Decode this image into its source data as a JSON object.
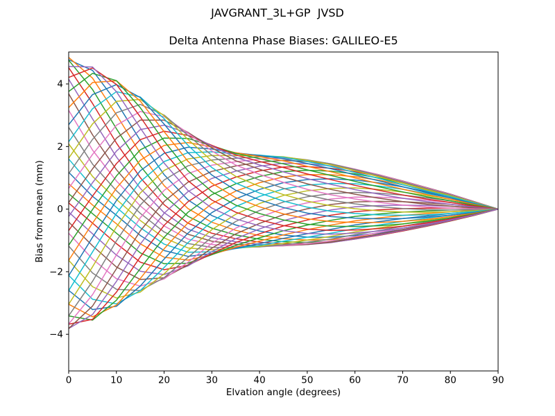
{
  "chart_data": {
    "type": "line",
    "title": "JAVGRANT_3L+GP  JVSD",
    "subtitle": "Delta Antenna Phase Biases: GALILEO-E5",
    "xlabel": "Elvation angle (degrees)",
    "ylabel": "Bias from mean (mm)",
    "xlim": [
      0,
      90
    ],
    "ylim": [
      -5.17,
      5.02
    ],
    "x_ticks": [
      0,
      10,
      20,
      30,
      40,
      50,
      60,
      70,
      80,
      90
    ],
    "y_ticks": [
      -4,
      -2,
      0,
      2,
      4
    ],
    "grid": false,
    "legend": false,
    "axis_color": "#000000",
    "background_color": "#ffffff",
    "line_width": 1.5,
    "series_count": 45,
    "series_note": "Family of ~45 unlabeled azimuth curves; all converge to 0 mm at 90 deg elevation. Values below are estimated from the plot.",
    "palette": [
      "#1f77b4",
      "#ff7f0e",
      "#2ca02c",
      "#d62728",
      "#9467bd",
      "#8c564b",
      "#e377c2",
      "#7f7f7f",
      "#bcbd22",
      "#17becf"
    ],
    "x_samples": [
      0,
      5,
      10,
      15,
      20,
      25,
      30,
      35,
      40,
      45,
      50,
      55,
      60,
      65,
      70,
      75,
      80,
      85,
      90
    ],
    "envelope_upper": [
      4.75,
      4.6,
      4.0,
      3.3,
      2.55,
      1.95,
      1.5,
      1.55,
      1.7,
      1.7,
      1.6,
      1.5,
      1.3,
      1.1,
      0.9,
      0.7,
      0.45,
      0.25,
      0.0
    ],
    "envelope_lower": [
      -3.85,
      -3.3,
      -2.8,
      -2.7,
      -2.5,
      -2.35,
      -2.2,
      -1.75,
      -1.4,
      -1.3,
      -1.2,
      -1.1,
      -1.0,
      -0.85,
      -0.7,
      -0.5,
      -0.35,
      -0.18,
      0.0
    ],
    "pinch_point": {
      "x": 27,
      "y": 0.3
    },
    "family_model": {
      "formula": "y(k,x) = A1(x)*cos(az+phi1(x)) + A2(x)*cos(2*az+phi2(x)) + A3(x)*cos(3*az+phi3(x)) + C(x), az = 2*pi*k/45, sampled at x_samples",
      "A1": [
        3.9,
        3.65,
        3.28,
        2.88,
        2.48,
        2.1,
        1.78,
        1.58,
        1.5,
        1.44,
        1.36,
        1.26,
        1.12,
        0.97,
        0.8,
        0.62,
        0.43,
        0.22,
        0.0
      ],
      "phi1": [
        -0.2,
        0.12,
        0.45,
        0.8,
        1.14,
        1.46,
        1.75,
        2.0,
        2.2,
        2.37,
        2.5,
        2.6,
        2.68,
        2.74,
        2.79,
        2.83,
        2.86,
        2.89,
        2.91
      ],
      "A2": [
        0.3,
        0.28,
        0.25,
        0.21,
        0.17,
        0.13,
        0.09,
        0.06,
        0.04,
        0.03,
        0.02,
        0.01,
        0.0,
        0.0,
        0.0,
        0.0,
        0.0,
        0.0,
        0.0
      ],
      "phi2": [
        0.8,
        1.5,
        2.2,
        2.85,
        3.4,
        3.85,
        4.2,
        4.45,
        4.65,
        4.8,
        4.9,
        4.95,
        5.0,
        5.0,
        5.0,
        5.0,
        5.0,
        5.0,
        5.0
      ],
      "A3": [
        0.42,
        0.38,
        0.32,
        0.25,
        0.19,
        0.13,
        0.085,
        0.055,
        0.035,
        0.02,
        0.01,
        0.0,
        0.0,
        0.0,
        0.0,
        0.0,
        0.0,
        0.0,
        0.0
      ],
      "phi3": [
        5.68,
        6.55,
        7.35,
        8.05,
        8.6,
        9.0,
        9.3,
        9.5,
        9.63,
        9.7,
        9.74,
        9.76,
        9.77,
        9.78,
        9.78,
        9.78,
        9.78,
        9.78,
        9.78
      ],
      "C": [
        0.4,
        0.42,
        0.46,
        0.44,
        0.36,
        0.28,
        0.24,
        0.22,
        0.22,
        0.22,
        0.2,
        0.18,
        0.16,
        0.13,
        0.1,
        0.07,
        0.05,
        0.02,
        0.0
      ]
    }
  }
}
